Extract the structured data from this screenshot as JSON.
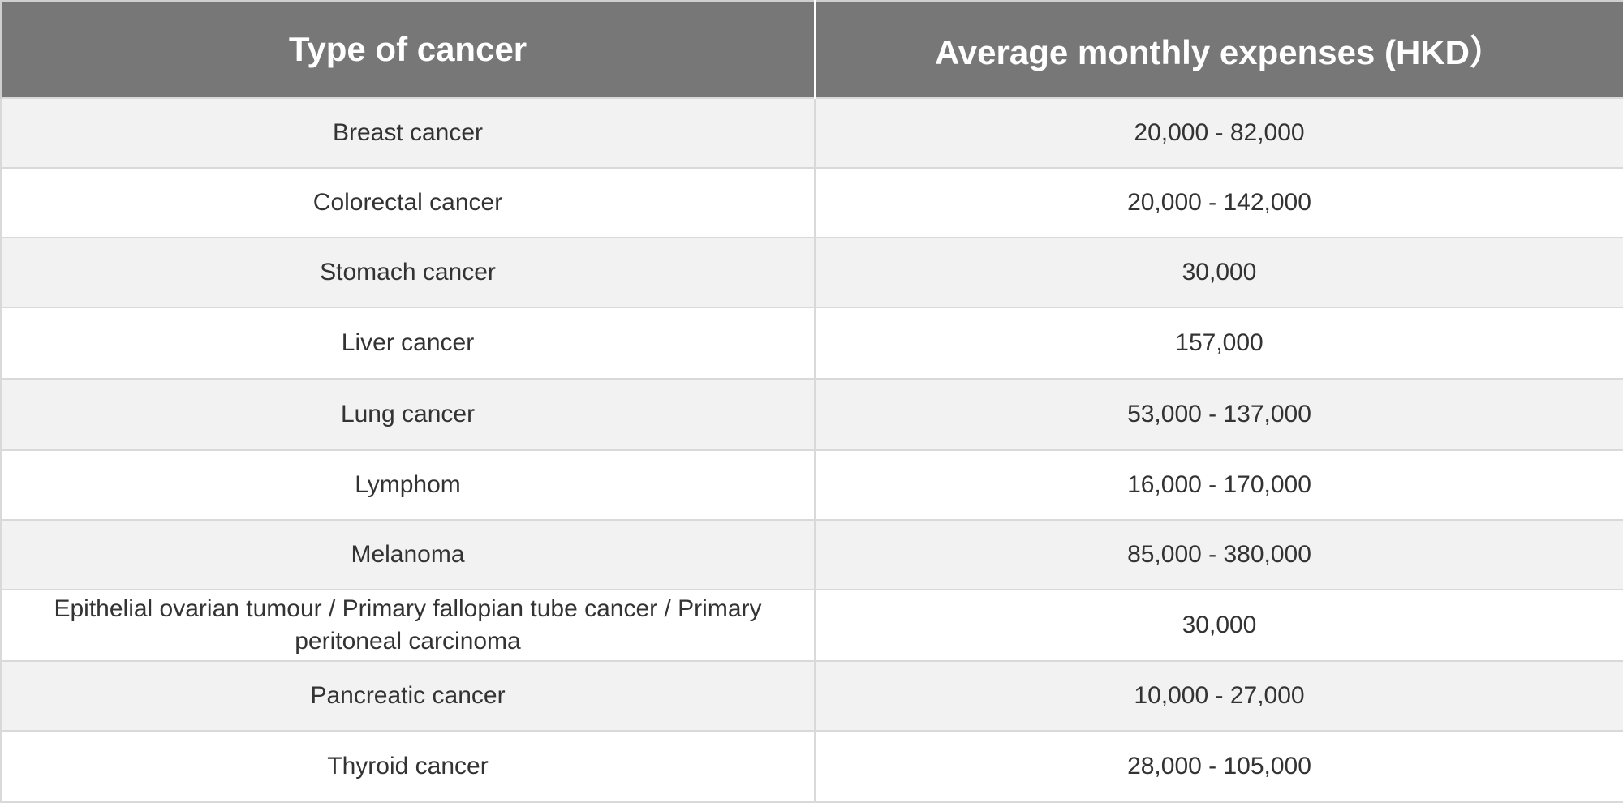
{
  "table": {
    "headers": {
      "type": "Type of cancer",
      "expenses": "Average monthly expenses (HKD）"
    },
    "rows": [
      {
        "type": "Breast cancer",
        "expenses": "20,000 - 82,000"
      },
      {
        "type": "Colorectal cancer",
        "expenses": "20,000 - 142,000"
      },
      {
        "type": "Stomach cancer",
        "expenses": "30,000"
      },
      {
        "type": "Liver cancer",
        "expenses": "157,000"
      },
      {
        "type": "Lung cancer",
        "expenses": "53,000 - 137,000"
      },
      {
        "type": "Lymphom",
        "expenses": "16,000 - 170,000"
      },
      {
        "type": "Melanoma",
        "expenses": "85,000 - 380,000"
      },
      {
        "type": "Epithelial ovarian tumour / Primary fallopian tube cancer / Primary peritoneal carcinoma",
        "expenses": "30,000"
      },
      {
        "type": "Pancreatic cancer",
        "expenses": "10,000 - 27,000"
      },
      {
        "type": "Thyroid cancer",
        "expenses": "28,000 - 105,000"
      }
    ]
  },
  "colors": {
    "header_bg": "#777777",
    "header_text": "#ffffff",
    "row_alt_bg": "#f2f2f2",
    "row_bg": "#ffffff",
    "text": "#333333"
  }
}
